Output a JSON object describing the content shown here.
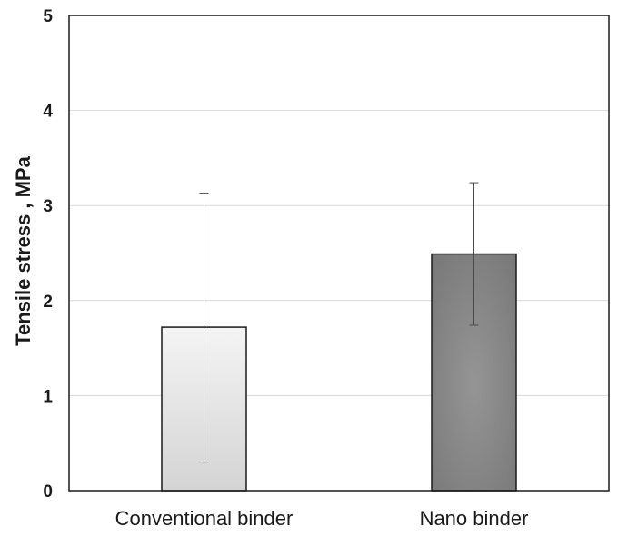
{
  "chart_data": {
    "type": "bar",
    "title": "",
    "xlabel": "",
    "ylabel": "Tensile stress , MPa",
    "ylim": [
      0,
      5
    ],
    "yticks": [
      0,
      1,
      2,
      3,
      4,
      5
    ],
    "grid": true,
    "categories": [
      "Conventional binder",
      "Nano binder"
    ],
    "values": [
      1.72,
      2.49
    ],
    "error_low": [
      0.3,
      1.74
    ],
    "error_high": [
      3.13,
      3.24
    ],
    "colors": [
      "#e3e3e3",
      "#8a8a8a"
    ]
  }
}
